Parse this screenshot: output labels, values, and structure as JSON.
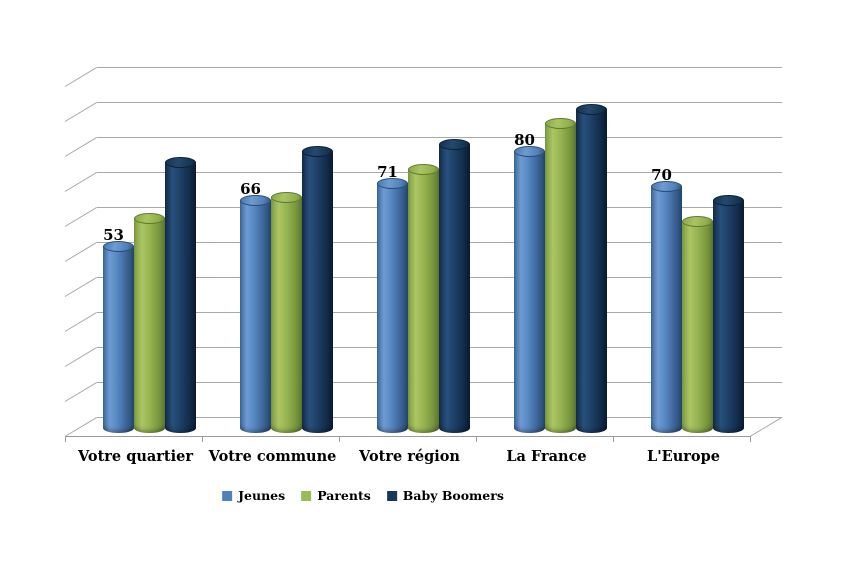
{
  "chart_data": {
    "type": "bar",
    "subtype": "3d-cylinder",
    "title": "",
    "categories": [
      "Votre quartier",
      "Votre commune",
      "Votre région",
      "La France",
      "L'Europe"
    ],
    "series": [
      {
        "name": "Jeunes",
        "color": "#4F81BD",
        "values": [
          53,
          66,
          71,
          80,
          70
        ],
        "show_labels": true
      },
      {
        "name": "Parents",
        "color": "#9BBB59",
        "values": [
          61,
          67,
          75,
          88,
          60
        ],
        "show_labels": false
      },
      {
        "name": "Baby Boomers",
        "color": "#17375D",
        "values": [
          77,
          80,
          82,
          92,
          66
        ],
        "show_labels": false
      }
    ],
    "data_labels": {
      "series": "Jeunes",
      "values": [
        53,
        66,
        71,
        80,
        70
      ]
    },
    "xlabel": "",
    "ylabel": "",
    "ylim": [
      0,
      100
    ],
    "grid_step": 10,
    "grid": true,
    "legend_position": "bottom",
    "colors": {
      "grid": "#a8a8a8",
      "axis": "#9a9a9a",
      "label_text": "#000000",
      "background": "#ffffff"
    }
  }
}
